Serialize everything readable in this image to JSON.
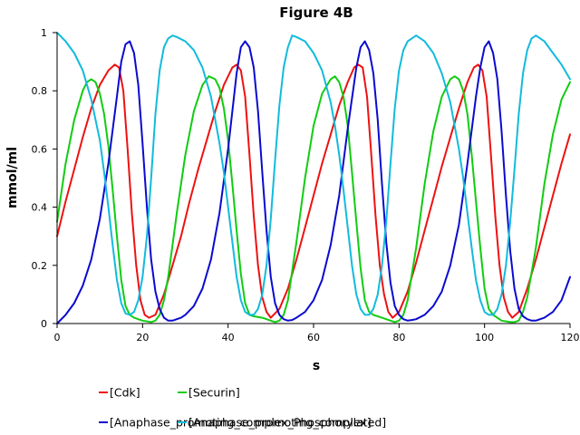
{
  "chart_data": {
    "type": "line",
    "title": "Figure 4B",
    "xlabel": "s",
    "ylabel": "mmol/ml",
    "xlim": [
      0,
      120
    ],
    "ylim": [
      0,
      1
    ],
    "xticks": [
      0,
      20,
      40,
      60,
      80,
      100,
      120
    ],
    "yticks": [
      0,
      0.2,
      0.4,
      0.6,
      0.8,
      1
    ],
    "xtick_labels": [
      "0",
      "20",
      "40",
      "60",
      "80",
      "100",
      "120"
    ],
    "ytick_labels": [
      "0",
      "0.2",
      "0.4",
      "0.6",
      "0.8",
      "1"
    ],
    "grid": false,
    "legend_position": "bottom",
    "series": [
      {
        "name": "[Cdk]",
        "color": "#ee1111",
        "x": [
          0,
          2,
          4,
          6,
          8,
          10,
          12,
          13.5,
          14.5,
          15.5,
          16.5,
          17.5,
          18.5,
          19.5,
          20.5,
          21.5,
          23,
          25,
          27,
          29,
          31,
          33,
          35,
          37,
          39,
          41,
          42,
          43,
          44,
          45,
          46,
          47,
          48,
          49,
          50,
          52,
          54,
          56,
          58,
          60,
          62,
          64,
          66,
          68,
          69.5,
          70.5,
          71.5,
          72.5,
          73.5,
          74.5,
          75.5,
          76.5,
          77.5,
          78.5,
          80,
          82,
          84,
          86,
          88,
          90,
          92,
          94,
          96,
          97.5,
          98.5,
          99.5,
          100.5,
          101.5,
          102.5,
          103.5,
          104.5,
          105.5,
          106.5,
          108,
          110,
          112,
          114,
          116,
          118,
          120
        ],
        "y": [
          0.3,
          0.42,
          0.53,
          0.64,
          0.74,
          0.82,
          0.87,
          0.89,
          0.88,
          0.8,
          0.6,
          0.38,
          0.2,
          0.08,
          0.03,
          0.02,
          0.03,
          0.1,
          0.2,
          0.3,
          0.42,
          0.53,
          0.63,
          0.73,
          0.82,
          0.88,
          0.89,
          0.87,
          0.78,
          0.58,
          0.37,
          0.2,
          0.09,
          0.04,
          0.02,
          0.05,
          0.12,
          0.22,
          0.33,
          0.44,
          0.55,
          0.65,
          0.75,
          0.83,
          0.88,
          0.89,
          0.88,
          0.78,
          0.58,
          0.37,
          0.2,
          0.1,
          0.04,
          0.02,
          0.04,
          0.11,
          0.21,
          0.32,
          0.43,
          0.54,
          0.64,
          0.74,
          0.83,
          0.88,
          0.89,
          0.87,
          0.78,
          0.58,
          0.37,
          0.2,
          0.09,
          0.04,
          0.02,
          0.04,
          0.12,
          0.22,
          0.33,
          0.44,
          0.55,
          0.65
        ]
      },
      {
        "name": "[Securin]",
        "color": "#11cc11",
        "x": [
          0,
          2,
          4,
          6,
          7,
          8,
          9,
          10,
          11,
          12,
          13,
          14,
          15,
          16,
          17,
          18,
          20,
          22,
          23,
          24,
          25,
          26,
          27,
          28,
          30,
          32,
          34,
          35.5,
          37,
          38,
          39,
          40,
          41,
          42,
          43,
          44,
          45,
          46,
          48,
          50,
          51,
          52,
          53,
          54,
          56,
          58,
          60,
          62,
          64,
          65,
          66,
          67,
          68,
          69,
          70,
          71,
          72,
          73,
          74,
          76,
          78,
          79,
          80,
          81,
          82,
          84,
          86,
          88,
          90,
          92,
          93,
          94,
          95,
          96,
          97,
          98,
          99,
          100,
          101,
          102,
          104,
          106,
          107,
          108,
          109,
          110,
          112,
          114,
          116,
          118,
          120
        ],
        "y": [
          0.35,
          0.55,
          0.7,
          0.8,
          0.83,
          0.84,
          0.83,
          0.79,
          0.72,
          0.61,
          0.46,
          0.3,
          0.15,
          0.06,
          0.03,
          0.02,
          0.01,
          0.005,
          0.01,
          0.03,
          0.08,
          0.16,
          0.27,
          0.38,
          0.58,
          0.73,
          0.82,
          0.85,
          0.84,
          0.81,
          0.74,
          0.63,
          0.48,
          0.32,
          0.17,
          0.07,
          0.03,
          0.025,
          0.02,
          0.01,
          0.005,
          0.01,
          0.03,
          0.08,
          0.28,
          0.5,
          0.68,
          0.79,
          0.84,
          0.85,
          0.83,
          0.78,
          0.68,
          0.52,
          0.35,
          0.19,
          0.08,
          0.04,
          0.03,
          0.02,
          0.01,
          0.005,
          0.01,
          0.03,
          0.08,
          0.26,
          0.48,
          0.66,
          0.78,
          0.84,
          0.85,
          0.84,
          0.8,
          0.72,
          0.58,
          0.42,
          0.26,
          0.12,
          0.05,
          0.03,
          0.01,
          0.005,
          0.005,
          0.01,
          0.04,
          0.09,
          0.26,
          0.48,
          0.65,
          0.77,
          0.83
        ]
      },
      {
        "name": "[Anaphase_promoting_complex_Phosphorylated]",
        "color": "#0a0ad0",
        "x": [
          0,
          2,
          4,
          6,
          8,
          10,
          12,
          14,
          15,
          16,
          17,
          18,
          19,
          20,
          21,
          22,
          23,
          24,
          25,
          26,
          27,
          28,
          29,
          30,
          32,
          34,
          36,
          38,
          40,
          42,
          43,
          44,
          45,
          46,
          47,
          48,
          49,
          50,
          51,
          52,
          53,
          54,
          55,
          56,
          58,
          60,
          62,
          64,
          66,
          68,
          70,
          71,
          72,
          73,
          74,
          75,
          76,
          77,
          78,
          79,
          80,
          81,
          82,
          83,
          84,
          86,
          88,
          90,
          92,
          94,
          96,
          98,
          99,
          100,
          101,
          102,
          103,
          104,
          105,
          106,
          107,
          108,
          109,
          110,
          111,
          112,
          114,
          116,
          118,
          120
        ],
        "y": [
          0,
          0.03,
          0.07,
          0.13,
          0.22,
          0.36,
          0.55,
          0.78,
          0.9,
          0.96,
          0.97,
          0.93,
          0.82,
          0.62,
          0.4,
          0.22,
          0.11,
          0.05,
          0.02,
          0.01,
          0.01,
          0.015,
          0.02,
          0.03,
          0.06,
          0.12,
          0.22,
          0.38,
          0.6,
          0.86,
          0.95,
          0.97,
          0.95,
          0.88,
          0.73,
          0.52,
          0.32,
          0.16,
          0.07,
          0.03,
          0.015,
          0.01,
          0.012,
          0.02,
          0.04,
          0.08,
          0.15,
          0.27,
          0.44,
          0.67,
          0.88,
          0.95,
          0.97,
          0.94,
          0.86,
          0.7,
          0.48,
          0.28,
          0.14,
          0.06,
          0.03,
          0.015,
          0.01,
          0.012,
          0.015,
          0.03,
          0.06,
          0.11,
          0.2,
          0.34,
          0.55,
          0.78,
          0.88,
          0.95,
          0.97,
          0.93,
          0.84,
          0.66,
          0.44,
          0.25,
          0.12,
          0.05,
          0.025,
          0.015,
          0.01,
          0.01,
          0.02,
          0.04,
          0.08,
          0.16
        ]
      },
      {
        "name": "[Anaphase_promoting_complex]",
        "color": "#11bbdd",
        "x": [
          0,
          2,
          4,
          6,
          8,
          10,
          11,
          12,
          13,
          14,
          15,
          16,
          17,
          18,
          19,
          20,
          21,
          22,
          23,
          24,
          25,
          26,
          27,
          28,
          30,
          32,
          34,
          36,
          38,
          39,
          40,
          41,
          42,
          43,
          44,
          45,
          46,
          47,
          48,
          49,
          50,
          51,
          52,
          53,
          54,
          55,
          56,
          58,
          60,
          62,
          64,
          65,
          66,
          67,
          68,
          69,
          70,
          71,
          72,
          73,
          74,
          75,
          76,
          77,
          78,
          79,
          80,
          81,
          82,
          83,
          84,
          86,
          88,
          90,
          92,
          94,
          95,
          96,
          97,
          98,
          99,
          100,
          101,
          102,
          103,
          104,
          105,
          106,
          107,
          108,
          109,
          110,
          111,
          112,
          114,
          116,
          118,
          120
        ],
        "y": [
          1,
          0.97,
          0.93,
          0.87,
          0.77,
          0.63,
          0.52,
          0.4,
          0.27,
          0.15,
          0.07,
          0.035,
          0.03,
          0.04,
          0.08,
          0.16,
          0.3,
          0.5,
          0.72,
          0.87,
          0.95,
          0.98,
          0.99,
          0.985,
          0.97,
          0.94,
          0.88,
          0.78,
          0.62,
          0.52,
          0.4,
          0.28,
          0.16,
          0.08,
          0.04,
          0.03,
          0.03,
          0.05,
          0.1,
          0.2,
          0.36,
          0.56,
          0.75,
          0.88,
          0.95,
          0.99,
          0.985,
          0.97,
          0.93,
          0.87,
          0.76,
          0.68,
          0.58,
          0.46,
          0.33,
          0.2,
          0.1,
          0.05,
          0.03,
          0.03,
          0.05,
          0.1,
          0.2,
          0.35,
          0.55,
          0.74,
          0.87,
          0.94,
          0.97,
          0.98,
          0.99,
          0.97,
          0.93,
          0.86,
          0.76,
          0.6,
          0.5,
          0.38,
          0.26,
          0.15,
          0.08,
          0.04,
          0.03,
          0.03,
          0.05,
          0.1,
          0.2,
          0.35,
          0.53,
          0.72,
          0.86,
          0.94,
          0.98,
          0.99,
          0.97,
          0.93,
          0.89,
          0.84
        ]
      }
    ]
  }
}
